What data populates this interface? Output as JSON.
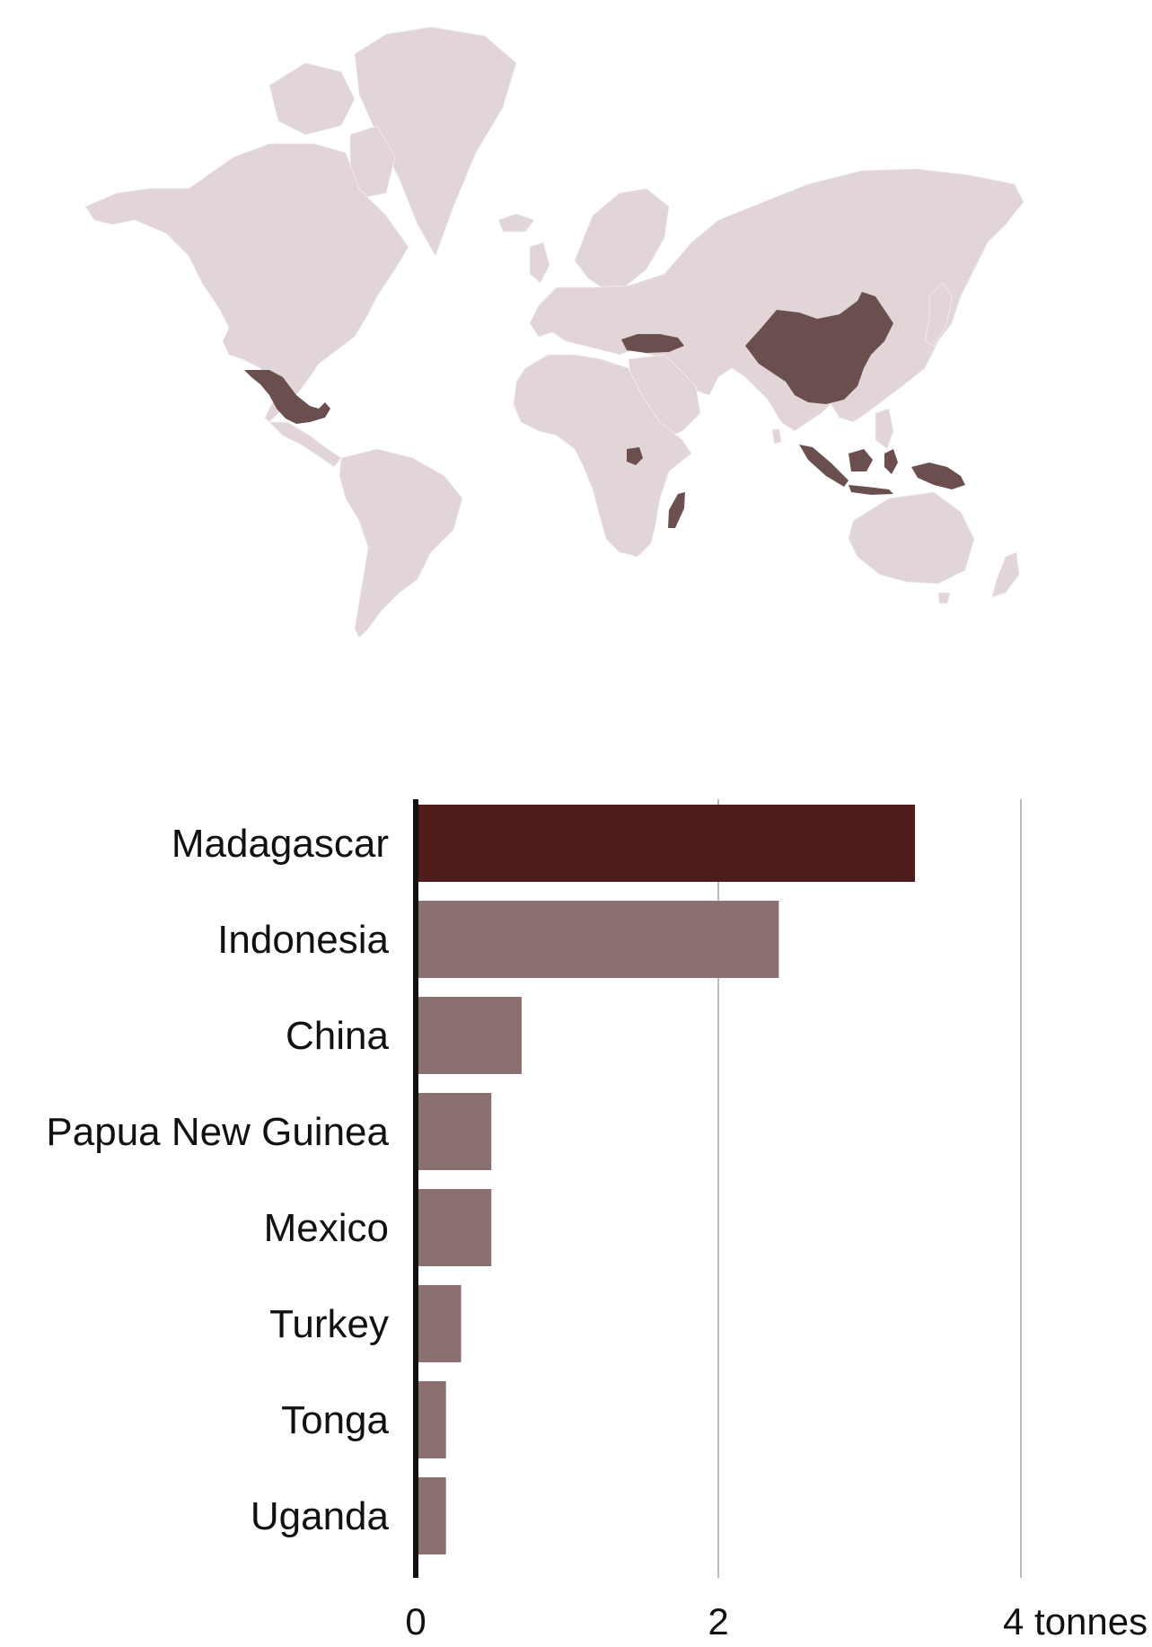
{
  "map": {
    "land_color": "#e2d5d7",
    "highlight_color": "#6b4f4f",
    "highlighted_countries": [
      "Mexico",
      "Turkey",
      "China",
      "Indonesia",
      "Papua New Guinea",
      "Uganda",
      "Madagascar"
    ]
  },
  "chart_data": {
    "type": "bar",
    "orientation": "horizontal",
    "categories": [
      "Madagascar",
      "Indonesia",
      "China",
      "Papua New Guinea",
      "Mexico",
      "Turkey",
      "Tonga",
      "Uganda"
    ],
    "values": [
      3.3,
      2.4,
      0.7,
      0.5,
      0.5,
      0.3,
      0.2,
      0.2
    ],
    "xlim": [
      0,
      4.5
    ],
    "xticks": [
      {
        "value": 0,
        "label": "0"
      },
      {
        "value": 2,
        "label": "2"
      },
      {
        "value": 4,
        "label": "4 tonnes"
      }
    ],
    "grid": true,
    "colors": {
      "highlight": "#4e1c1a",
      "bar": "#8b7070",
      "grid": "#bbbbbb",
      "axis": "#111111",
      "text": "#111111"
    }
  }
}
